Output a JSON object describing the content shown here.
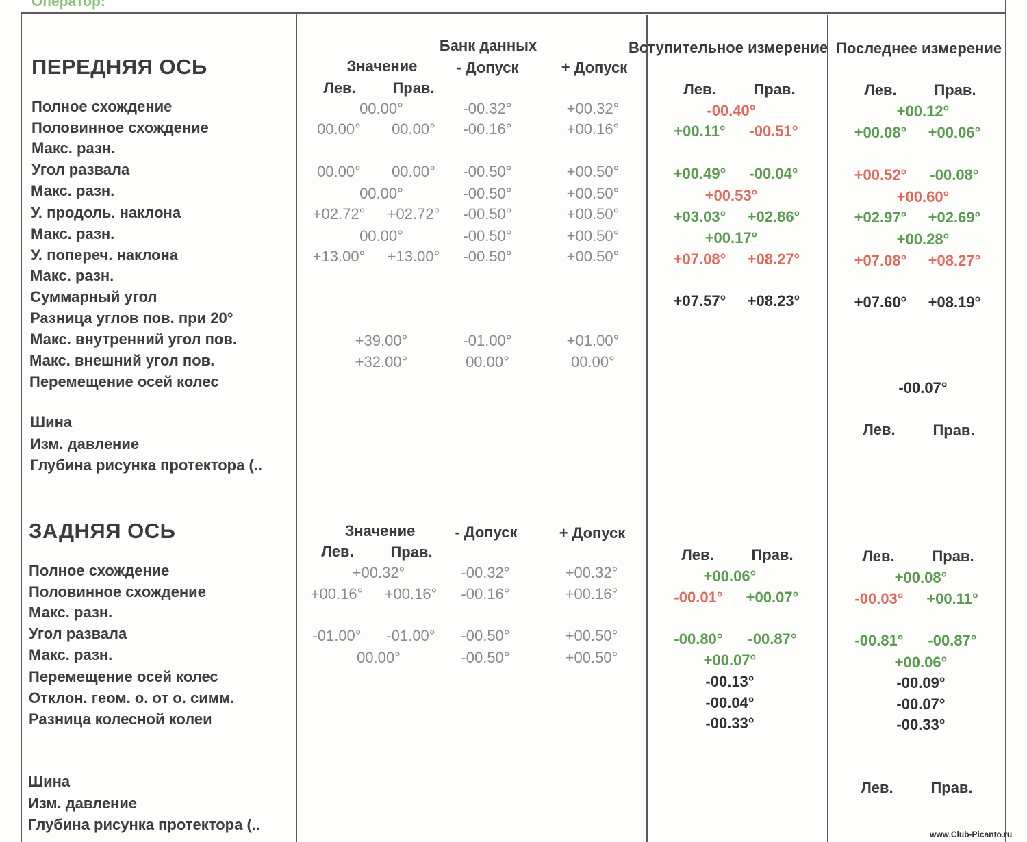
{
  "operator_label": "Оператор:",
  "front": {
    "title": "ПЕРЕДНЯЯ ОСЬ",
    "labels": [
      "Полное схождение",
      "Половинное схождение",
      "Макс. разн.",
      "Угол развала",
      "Макс. разн.",
      "У. продоль. наклона",
      "Макс. разн.",
      "У. попереч. наклона",
      "Макс. разн.",
      "Суммарный угол",
      "Разница углов пов. при 20°",
      "Макс. внутренний угол пов.",
      "Макс. внешний угол пов.",
      "Перемещение осей колес"
    ],
    "tire_labels": [
      "Шина",
      "Изм. давление",
      "Глубина рисунка протектора (.."
    ],
    "db": {
      "title": "Банк данных",
      "value": "Значение",
      "left": "Лев.",
      "right": "Прав.",
      "minus_tol": "- Допуск",
      "plus_tol": "+ Допуск",
      "rows": [
        {
          "v": "00.00°",
          "min": "-00.32°",
          "max": "+00.32°"
        },
        {
          "l": "00.00°",
          "r": "00.00°",
          "min": "-00.16°",
          "max": "+00.16°"
        },
        {
          "l": "00.00°",
          "r": "00.00°",
          "min": "-00.50°",
          "max": "+00.50°"
        },
        {
          "v": "00.00°",
          "min": "-00.50°",
          "max": "+00.50°"
        },
        {
          "l": "+02.72°",
          "r": "+02.72°",
          "min": "-00.50°",
          "max": "+00.50°"
        },
        {
          "v": "00.00°",
          "min": "-00.50°",
          "max": "+00.50°"
        },
        {
          "l": "+13.00°",
          "r": "+13.00°",
          "min": "-00.50°",
          "max": "+00.50°"
        },
        {
          "v": "+39.00°",
          "min": "-01.00°",
          "max": "+01.00°"
        },
        {
          "v": "+32.00°",
          "min": "00.00°",
          "max": "00.00°"
        }
      ]
    },
    "initial": {
      "title": "Вступительное измерение",
      "left": "Лев.",
      "right": "Прав.",
      "values": [
        {
          "v": "-00.40°",
          "color": "#e06a5e"
        },
        {
          "l": "+00.11°",
          "lc": "#5b9a52",
          "r": "-00.51°",
          "rc": "#e06a5e"
        },
        {
          "l": "+00.49°",
          "lc": "#5b9a52",
          "r": "-00.04°",
          "rc": "#5b9a52"
        },
        {
          "v": "+00.53°",
          "color": "#e06a5e"
        },
        {
          "l": "+03.03°",
          "lc": "#5b9a52",
          "r": "+02.86°",
          "rc": "#5b9a52"
        },
        {
          "v": "+00.17°",
          "color": "#5b9a52"
        },
        {
          "l": "+07.08°",
          "lc": "#e06a5e",
          "r": "+08.27°",
          "rc": "#e06a5e"
        },
        {
          "l": "+07.57°",
          "lc": "#303030",
          "r": "+08.23°",
          "rc": "#303030"
        }
      ]
    },
    "last": {
      "title": "Последнее измерение",
      "left": "Лев.",
      "right": "Прав.",
      "values": [
        {
          "v": "+00.12°",
          "color": "#5b9a52"
        },
        {
          "l": "+00.08°",
          "lc": "#5b9a52",
          "r": "+00.06°",
          "rc": "#5b9a52"
        },
        {
          "l": "+00.52°",
          "lc": "#e06a5e",
          "r": "-00.08°",
          "rc": "#5b9a52"
        },
        {
          "v": "+00.60°",
          "color": "#e06a5e"
        },
        {
          "l": "+02.97°",
          "lc": "#5b9a52",
          "r": "+02.69°",
          "rc": "#5b9a52"
        },
        {
          "v": "+00.28°",
          "color": "#5b9a52"
        },
        {
          "l": "+07.08°",
          "lc": "#e06a5e",
          "r": "+08.27°",
          "rc": "#e06a5e"
        },
        {
          "l": "+07.60°",
          "lc": "#303030",
          "r": "+08.19°",
          "rc": "#303030"
        },
        {
          "v": "-00.07°",
          "color": "#303030"
        }
      ],
      "tire_left": "Лев.",
      "tire_right": "Прав."
    }
  },
  "rear": {
    "title": "ЗАДНЯЯ ОСЬ",
    "labels": [
      "Полное схождение",
      "Половинное схождение",
      "Макс. разн.",
      "Угол развала",
      "Макс. разн.",
      "Перемещение осей колес",
      "Отклон. геом. о. от о. симм.",
      "Разница колесной колеи"
    ],
    "tire_labels": [
      "Шина",
      "Изм. давление",
      "Глубина рисунка протектора (.."
    ],
    "db": {
      "value": "Значение",
      "left": "Лев.",
      "right": "Прав.",
      "minus_tol": "- Допуск",
      "plus_tol": "+ Допуск",
      "rows": [
        {
          "v": "+00.32°",
          "min": "-00.32°",
          "max": "+00.32°"
        },
        {
          "l": "+00.16°",
          "r": "+00.16°",
          "min": "-00.16°",
          "max": "+00.16°"
        },
        {
          "l": "-01.00°",
          "r": "-01.00°",
          "min": "-00.50°",
          "max": "+00.50°"
        },
        {
          "v": "00.00°",
          "min": "-00.50°",
          "max": "+00.50°"
        }
      ]
    },
    "initial": {
      "left": "Лев.",
      "right": "Прав.",
      "values": [
        {
          "v": "+00.06°",
          "color": "#5b9a52"
        },
        {
          "l": "-00.01°",
          "lc": "#e06a5e",
          "r": "+00.07°",
          "rc": "#5b9a52"
        },
        {
          "l": "-00.80°",
          "lc": "#5b9a52",
          "r": "-00.87°",
          "rc": "#5b9a52"
        },
        {
          "v": "+00.07°",
          "color": "#5b9a52"
        },
        {
          "v": "-00.13°",
          "color": "#303030"
        },
        {
          "v": "-00.04°",
          "color": "#303030"
        },
        {
          "v": "-00.33°",
          "color": "#303030"
        }
      ]
    },
    "last": {
      "left": "Лев.",
      "right": "Прав.",
      "values": [
        {
          "v": "+00.08°",
          "color": "#5b9a52"
        },
        {
          "l": "-00.03°",
          "lc": "#e06a5e",
          "r": "+00.11°",
          "rc": "#5b9a52"
        },
        {
          "l": "-00.81°",
          "lc": "#5b9a52",
          "r": "-00.87°",
          "rc": "#5b9a52"
        },
        {
          "v": "+00.06°",
          "color": "#5b9a52"
        },
        {
          "v": "-00.09°",
          "color": "#303030"
        },
        {
          "v": "-00.07°",
          "color": "#303030"
        },
        {
          "v": "-00.33°",
          "color": "#303030"
        }
      ],
      "tire_left": "Лев.",
      "tire_right": "Прав."
    }
  },
  "footer": "www.Club-Picanto.ru"
}
